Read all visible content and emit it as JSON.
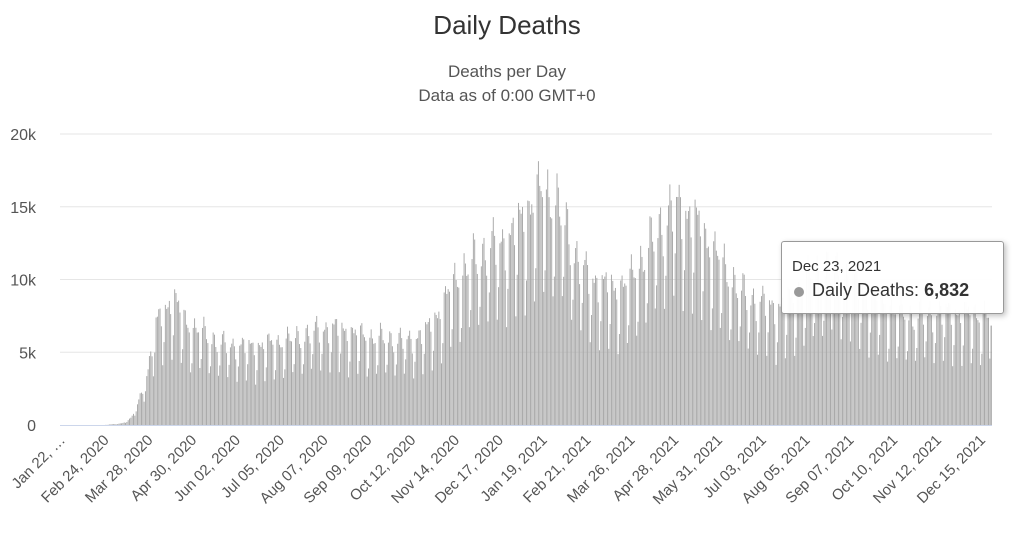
{
  "chart_data": {
    "type": "bar",
    "title": "Daily Deaths",
    "subtitle_lines": [
      "Deaths per Day",
      "Data as of 0:00 GMT+0"
    ],
    "xlabel": "",
    "ylabel": "",
    "ylim": [
      0,
      20000
    ],
    "yticks": [
      0,
      5000,
      10000,
      15000,
      20000
    ],
    "ytick_labels": [
      "0",
      "5k",
      "10k",
      "15k",
      "20k"
    ],
    "x_start": "2020-01-22",
    "x_end": "2021-12-23",
    "xtick_labels": [
      "Jan 22, …",
      "Feb 24, 2020",
      "Mar 28, 2020",
      "Apr 30, 2020",
      "Jun 02, 2020",
      "Jul 05, 2020",
      "Aug 07, 2020",
      "Sep 09, 2020",
      "Oct 12, 2020",
      "Nov 14, 2020",
      "Dec 17, 2020",
      "Jan 19, 2021",
      "Feb 21, 2021",
      "Mar 26, 2021",
      "Apr 28, 2021",
      "May 31, 2021",
      "Jul 03, 2021",
      "Aug 05, 2021",
      "Sep 07, 2021",
      "Oct 10, 2021",
      "Nov 12, 2021",
      "Dec 15, 2021"
    ],
    "grid": true,
    "bar_color": "#a8a8a8",
    "series": [
      {
        "name": "Daily Deaths",
        "points": [
          [
            "2020-01-22",
            0
          ],
          [
            "2020-02-24",
            0
          ],
          [
            "2020-03-08",
            100
          ],
          [
            "2020-03-15",
            400
          ],
          [
            "2020-03-21",
            1500
          ],
          [
            "2020-03-28",
            3500
          ],
          [
            "2020-04-03",
            6300
          ],
          [
            "2020-04-09",
            7200
          ],
          [
            "2020-04-16",
            7900
          ],
          [
            "2020-04-23",
            6800
          ],
          [
            "2020-04-30",
            6000
          ],
          [
            "2020-05-07",
            5900
          ],
          [
            "2020-05-14",
            5500
          ],
          [
            "2020-05-21",
            5100
          ],
          [
            "2020-06-02",
            5000
          ],
          [
            "2020-06-15",
            4900
          ],
          [
            "2020-07-05",
            5200
          ],
          [
            "2020-07-20",
            5500
          ],
          [
            "2020-08-07",
            6100
          ],
          [
            "2020-08-20",
            6000
          ],
          [
            "2020-09-09",
            5500
          ],
          [
            "2020-09-25",
            5400
          ],
          [
            "2020-10-12",
            5300
          ],
          [
            "2020-10-25",
            6000
          ],
          [
            "2020-11-05",
            7500
          ],
          [
            "2020-11-14",
            9000
          ],
          [
            "2020-11-28",
            10300
          ],
          [
            "2020-12-10",
            11200
          ],
          [
            "2020-12-17",
            11300
          ],
          [
            "2020-12-28",
            12000
          ],
          [
            "2021-01-08",
            13500
          ],
          [
            "2021-01-15",
            14300
          ],
          [
            "2021-01-22",
            14500
          ],
          [
            "2021-01-29",
            14000
          ],
          [
            "2021-02-07",
            12200
          ],
          [
            "2021-02-14",
            10500
          ],
          [
            "2021-02-21",
            9500
          ],
          [
            "2021-03-05",
            8800
          ],
          [
            "2021-03-15",
            8500
          ],
          [
            "2021-03-26",
            9000
          ],
          [
            "2021-04-08",
            11000
          ],
          [
            "2021-04-18",
            12500
          ],
          [
            "2021-04-28",
            13800
          ],
          [
            "2021-05-05",
            13500
          ],
          [
            "2021-05-12",
            13000
          ],
          [
            "2021-05-20",
            12000
          ],
          [
            "2021-05-31",
            10500
          ],
          [
            "2021-06-10",
            9200
          ],
          [
            "2021-06-20",
            8200
          ],
          [
            "2021-07-03",
            7700
          ],
          [
            "2021-07-15",
            7300
          ],
          [
            "2021-07-25",
            7800
          ],
          [
            "2021-08-05",
            9000
          ],
          [
            "2021-08-20",
            9800
          ],
          [
            "2021-09-07",
            9300
          ],
          [
            "2021-09-20",
            8300
          ],
          [
            "2021-10-01",
            7800
          ],
          [
            "2021-10-10",
            7200
          ],
          [
            "2021-10-25",
            6800
          ],
          [
            "2021-11-12",
            7100
          ],
          [
            "2021-11-28",
            7000
          ],
          [
            "2021-12-15",
            6900
          ],
          [
            "2021-12-23",
            6832
          ]
        ]
      }
    ],
    "tooltip": {
      "date": "Dec 23, 2021",
      "series_name": "Daily Deaths",
      "value_text": "6,832",
      "dot_color": "#999999"
    }
  }
}
